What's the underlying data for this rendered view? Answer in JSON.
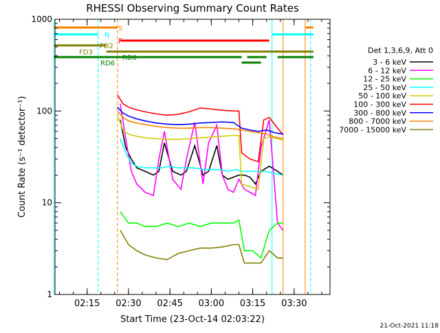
{
  "chart_data": {
    "type": "line",
    "title": "RHESSI Observing Summary Count Rates",
    "xlabel": "Start Time (23-Oct-14 02:03:22)",
    "ylabel": "Count Rate (s⁻¹ detector⁻¹)",
    "yscale": "log",
    "ylim": [
      1,
      1000
    ],
    "xlim": [
      "02:03:22",
      "03:43:00"
    ],
    "x_ticks": [
      "02:15",
      "02:30",
      "02:45",
      "03:00",
      "03:15",
      "03:30"
    ],
    "y_ticks": [
      "1",
      "10",
      "100",
      "1000"
    ],
    "footer_date": "21-Oct-2021 11:18",
    "legend": {
      "title": "Det 1,3,6,9, Att 0",
      "entries": [
        {
          "label": "3 - 6 keV",
          "color": "#000000"
        },
        {
          "label": "6 - 12 keV",
          "color": "#ff00ff"
        },
        {
          "label": "12 - 25 keV",
          "color": "#00ff00"
        },
        {
          "label": "25 - 50 keV",
          "color": "#00ffff"
        },
        {
          "label": "50 - 100 keV",
          "color": "#cccc00"
        },
        {
          "label": "100 - 300 keV",
          "color": "#ff0000"
        },
        {
          "label": "300 - 800 keV",
          "color": "#0000ff"
        },
        {
          "label": "800 - 7000 keV",
          "color": "#ff8000"
        },
        {
          "label": "7000 - 15000 keV",
          "color": "#808000"
        }
      ]
    },
    "flag_bars": [
      {
        "label": "S",
        "color": "#ff8000",
        "segments": [
          [
            "02:03",
            "02:26"
          ],
          [
            "03:34",
            "03:37"
          ]
        ]
      },
      {
        "label": "N",
        "color": "#00ffff",
        "segments": [
          [
            "02:03",
            "02:19"
          ],
          [
            "03:22",
            "03:37"
          ]
        ]
      },
      {
        "label": "F",
        "color": "#ff0000",
        "segments": [
          [
            "02:27",
            "03:21"
          ]
        ]
      },
      {
        "label": "FD2",
        "color": "#808000",
        "segments": [
          [
            "02:03",
            "02:22"
          ]
        ]
      },
      {
        "label": "FD3",
        "color": "#808000",
        "segments": [
          [
            "02:22",
            "03:37"
          ]
        ]
      },
      {
        "label": "RD0",
        "color": "#008000",
        "segments": [
          [
            "02:03",
            "03:11"
          ],
          [
            "03:13",
            "03:20"
          ],
          [
            "03:24",
            "03:37"
          ]
        ]
      },
      {
        "label": "RD6",
        "color": "#008000",
        "segments": [
          [
            "03:11",
            "03:18"
          ]
        ]
      }
    ],
    "time_markers": [
      {
        "time": "02:03",
        "color": "#00ffff",
        "style": "solid"
      },
      {
        "time": "02:19",
        "color": "#00ffff",
        "style": "dashed"
      },
      {
        "time": "02:26",
        "color": "#ff8000",
        "style": "dashed"
      },
      {
        "time": "03:22",
        "color": "#00ffff",
        "style": "solid"
      },
      {
        "time": "03:26",
        "color": "#ff8000",
        "style": "solid"
      },
      {
        "time": "03:34",
        "color": "#ff8000",
        "style": "solid"
      },
      {
        "time": "03:36",
        "color": "#00ffff",
        "style": "dashed"
      }
    ],
    "series": [
      {
        "name": "3 - 6 keV",
        "color": "#000000",
        "x": [
          "02:27",
          "02:29",
          "02:31",
          "02:33",
          "02:36",
          "02:39",
          "02:41",
          "02:43",
          "02:46",
          "02:49",
          "02:51",
          "02:54",
          "02:57",
          "02:59",
          "03:02",
          "03:04",
          "03:06",
          "03:08",
          "03:10",
          "03:12",
          "03:14",
          "03:16",
          "03:18",
          "03:21",
          "03:24",
          "03:26"
        ],
        "y": [
          80,
          40,
          30,
          24,
          22,
          20,
          22,
          45,
          22,
          20,
          22,
          42,
          20,
          22,
          42,
          20,
          18,
          19,
          20,
          20,
          19,
          16,
          22,
          25,
          22,
          20
        ]
      },
      {
        "name": "6 - 12 keV",
        "color": "#ff00ff",
        "x": [
          "02:27",
          "02:29",
          "02:31",
          "02:33",
          "02:36",
          "02:39",
          "02:41",
          "02:43",
          "02:46",
          "02:49",
          "02:51",
          "02:54",
          "02:57",
          "02:59",
          "03:02",
          "03:04",
          "03:06",
          "03:08",
          "03:10",
          "03:12",
          "03:14",
          "03:16",
          "03:18",
          "03:21",
          "03:24",
          "03:26"
        ],
        "y": [
          120,
          50,
          22,
          16,
          13,
          12,
          30,
          60,
          18,
          14,
          30,
          75,
          16,
          45,
          70,
          20,
          14,
          13,
          18,
          14,
          13,
          12,
          40,
          80,
          6,
          5
        ]
      },
      {
        "name": "12 - 25 keV",
        "color": "#00ff00",
        "x": [
          "02:27",
          "02:30",
          "02:33",
          "02:36",
          "02:40",
          "02:44",
          "02:48",
          "02:52",
          "02:56",
          "03:00",
          "03:04",
          "03:08",
          "03:10",
          "03:12",
          "03:15",
          "03:18",
          "03:21",
          "03:24",
          "03:26"
        ],
        "y": [
          8,
          6,
          6,
          5.5,
          5.5,
          6,
          5.5,
          6,
          5.5,
          6,
          6,
          6,
          6.5,
          3,
          3,
          2.5,
          5,
          6,
          6
        ]
      },
      {
        "name": "25 - 50 keV",
        "color": "#00ffff",
        "x": [
          "02:27",
          "02:29",
          "02:31",
          "02:33",
          "02:36",
          "02:39",
          "02:42",
          "02:45",
          "02:48",
          "02:51",
          "02:54",
          "02:57",
          "03:00",
          "03:03",
          "03:06",
          "03:09",
          "03:11",
          "03:14",
          "03:17",
          "03:20",
          "03:22",
          "03:26"
        ],
        "y": [
          50,
          35,
          27,
          25,
          24,
          24,
          24,
          25,
          24,
          24,
          24,
          23,
          23,
          23,
          22,
          23,
          22,
          22,
          22,
          22,
          21,
          20
        ]
      },
      {
        "name": "50 - 100 keV",
        "color": "#cccc00",
        "x": [
          "02:26",
          "02:28",
          "02:30",
          "02:33",
          "02:36",
          "02:40",
          "02:44",
          "02:48",
          "02:52",
          "02:56",
          "03:00",
          "03:04",
          "03:08",
          "03:10",
          "03:11",
          "03:14",
          "03:17",
          "03:19",
          "03:21",
          "03:24",
          "03:26"
        ],
        "y": [
          90,
          62,
          56,
          53,
          51,
          50,
          49,
          49,
          50,
          51,
          52,
          53,
          54,
          54,
          16,
          15,
          14,
          50,
          52,
          50,
          48
        ]
      },
      {
        "name": "100 - 300 keV",
        "color": "#ff0000",
        "x": [
          "02:26",
          "02:28",
          "02:30",
          "02:33",
          "02:36",
          "02:40",
          "02:44",
          "02:48",
          "02:52",
          "02:56",
          "03:00",
          "03:04",
          "03:08",
          "03:10",
          "03:11",
          "03:14",
          "03:17",
          "03:19",
          "03:21",
          "03:24",
          "03:26"
        ],
        "y": [
          150,
          120,
          110,
          103,
          98,
          93,
          90,
          92,
          98,
          108,
          105,
          102,
          100,
          100,
          35,
          30,
          28,
          80,
          85,
          65,
          55
        ]
      },
      {
        "name": "300 - 800 keV",
        "color": "#0000ff",
        "x": [
          "02:26",
          "02:28",
          "02:30",
          "02:33",
          "02:36",
          "02:40",
          "02:44",
          "02:48",
          "02:52",
          "02:56",
          "03:00",
          "03:04",
          "03:08",
          "03:11",
          "03:14",
          "03:17",
          "03:20",
          "03:23",
          "03:26"
        ],
        "y": [
          110,
          95,
          88,
          82,
          78,
          74,
          72,
          71,
          72,
          74,
          75,
          76,
          75,
          65,
          62,
          60,
          62,
          58,
          56
        ]
      },
      {
        "name": "800 - 7000 keV",
        "color": "#ff8000",
        "x": [
          "02:26",
          "02:28",
          "02:30",
          "02:33",
          "02:36",
          "02:40",
          "02:44",
          "02:48",
          "02:52",
          "02:56",
          "03:00",
          "03:04",
          "03:08",
          "03:11",
          "03:14",
          "03:17",
          "03:20",
          "03:23",
          "03:26"
        ],
        "y": [
          100,
          85,
          78,
          74,
          71,
          68,
          66,
          65,
          65,
          66,
          66,
          65,
          64,
          62,
          60,
          58,
          56,
          52,
          50
        ]
      },
      {
        "name": "7000 - 15000 keV",
        "color": "#808000",
        "x": [
          "02:27",
          "02:30",
          "02:33",
          "02:36",
          "02:40",
          "02:44",
          "02:48",
          "02:52",
          "02:56",
          "03:00",
          "03:04",
          "03:08",
          "03:10",
          "03:12",
          "03:15",
          "03:18",
          "03:21",
          "03:24",
          "03:26"
        ],
        "y": [
          5,
          3.5,
          3,
          2.7,
          2.5,
          2.4,
          2.8,
          3,
          3.2,
          3.2,
          3.3,
          3.5,
          3.5,
          2.2,
          2.2,
          2.2,
          3,
          2.5,
          2.5
        ]
      }
    ]
  }
}
